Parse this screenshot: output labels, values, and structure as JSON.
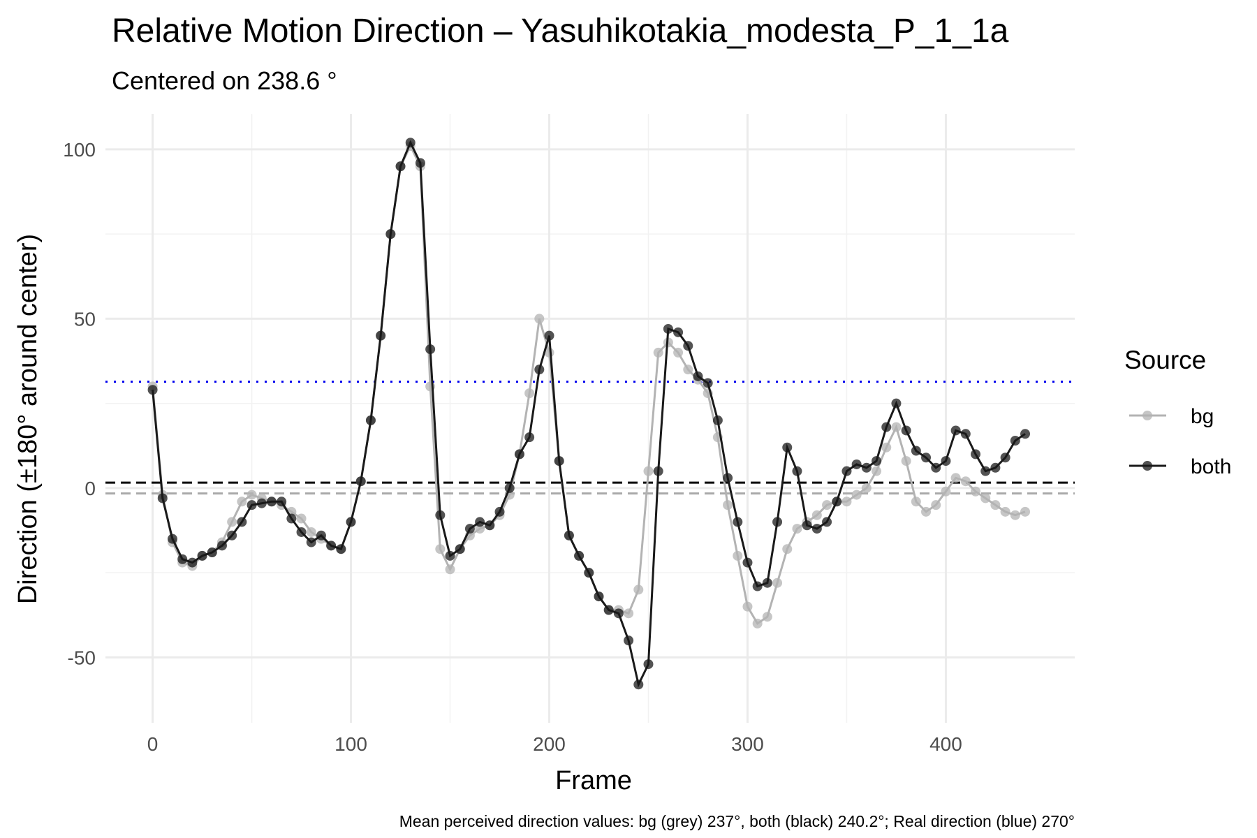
{
  "chart_data": {
    "type": "line",
    "title": "Relative Motion Direction – Yasuhikotakia_modesta_P_1_1a",
    "subtitle": "Centered on  238.6 °",
    "x_label": "Frame",
    "y_label": "Direction (±180° around center)",
    "caption": "Mean perceived direction values: bg (grey) 237°, both (black) 240.2°; Real direction (blue) 270°",
    "legend_title": "Source",
    "legend_position": "right",
    "grid": true,
    "minor_grid": true,
    "xlim": [
      -23.8,
      465
    ],
    "ylim": [
      -69.3,
      110.5
    ],
    "xticks": [
      0,
      100,
      200,
      300,
      400
    ],
    "yticks": [
      -50,
      0,
      50,
      100
    ],
    "x": [
      0,
      5,
      10,
      15,
      20,
      25,
      30,
      35,
      40,
      45,
      50,
      55,
      60,
      65,
      70,
      75,
      80,
      85,
      90,
      95,
      100,
      105,
      110,
      115,
      120,
      125,
      130,
      135,
      140,
      145,
      150,
      155,
      160,
      165,
      170,
      175,
      180,
      185,
      190,
      195,
      200,
      205,
      210,
      215,
      220,
      225,
      230,
      235,
      240,
      245,
      250,
      255,
      260,
      265,
      270,
      275,
      280,
      285,
      290,
      295,
      300,
      305,
      310,
      315,
      320,
      325,
      330,
      335,
      340,
      345,
      350,
      355,
      360,
      365,
      370,
      375,
      380,
      385,
      390,
      395,
      400,
      405,
      410,
      415,
      420,
      425,
      430,
      435,
      440
    ],
    "series": [
      {
        "name": "bg",
        "color": "#b3b3b3",
        "values": [
          30,
          -2,
          -16,
          -22,
          -23,
          -20,
          -19,
          -16,
          -10,
          -4,
          -2,
          -3,
          -4,
          -5,
          -7,
          -9,
          -13,
          -15,
          -17,
          -18,
          -10,
          2,
          20,
          45,
          75,
          95,
          101,
          95,
          30,
          -18,
          -24,
          -18,
          -14,
          -12,
          -11,
          -8,
          -2,
          10,
          28,
          50,
          40,
          8,
          -14,
          -20,
          -25,
          -32,
          -36,
          -36,
          -37,
          -30,
          5,
          40,
          43,
          40,
          35,
          32,
          28,
          15,
          -5,
          -20,
          -35,
          -40,
          -38,
          -28,
          -18,
          -12,
          -10,
          -8,
          -5,
          -4,
          -4,
          -2,
          0,
          5,
          12,
          18,
          8,
          -4,
          -7,
          -5,
          -1,
          3,
          2,
          -1,
          -3,
          -5,
          -7,
          -8,
          -7
        ]
      },
      {
        "name": "both",
        "color": "#1a1a1a",
        "values": [
          29,
          -3,
          -15,
          -21,
          -22,
          -20,
          -19,
          -17,
          -14,
          -10,
          -5,
          -4.5,
          -4,
          -4,
          -9,
          -13,
          -16,
          -14,
          -17,
          -18,
          -10,
          2,
          20,
          45,
          75,
          95,
          102,
          96,
          41,
          -8,
          -20,
          -18,
          -12,
          -10,
          -11,
          -7,
          0,
          10,
          15,
          35,
          45,
          8,
          -14,
          -20,
          -25,
          -32,
          -36,
          -37,
          -45,
          -58,
          -52,
          5,
          47,
          46,
          42,
          33,
          31,
          20,
          3,
          -10,
          -22,
          -29,
          -28,
          -10,
          12,
          5,
          -11,
          -12,
          -10,
          -4,
          5,
          7,
          6,
          8,
          18,
          25,
          17,
          11,
          9,
          6,
          8,
          17,
          16,
          10,
          5,
          6,
          9,
          14,
          16
        ]
      }
    ],
    "reference_lines": [
      {
        "value": 31.4,
        "color": "#0000ee",
        "style": "dotted"
      },
      {
        "value": 1.6,
        "color": "#000000",
        "style": "dashed"
      },
      {
        "value": -1.6,
        "color": "#aaaaaa",
        "style": "dashed"
      }
    ]
  }
}
